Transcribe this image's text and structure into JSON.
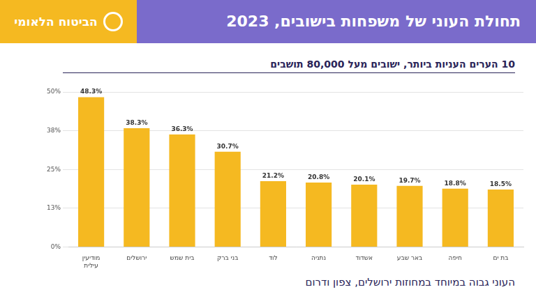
{
  "logo": "הביטוח הלאומי",
  "footer": "העוני גבוה במיוחד במחוזות ירושלים, צפון ודרום",
  "chart_data": {
    "type": "bar",
    "title": "תחולת העוני של משפחות בישובים, 2023",
    "subtitle": "10 הערים העניות ביותר, ישובים מעל 80,000 תושבים",
    "categories": [
      "מודיעין עילית",
      "ירושלים",
      "בית שמש",
      "בני ברק",
      "לוד",
      "נתניה",
      "אשדוד",
      "באר שבע",
      "חיפה",
      "בת ים"
    ],
    "values": [
      48.3,
      38.3,
      36.3,
      30.7,
      21.2,
      20.8,
      20.1,
      19.7,
      18.8,
      18.5
    ],
    "value_labels": [
      "48.3%",
      "38.3%",
      "36.3%",
      "30.7%",
      "21.2%",
      "20.8%",
      "20.1%",
      "19.7%",
      "18.8%",
      "18.5%"
    ],
    "color": "#f5b921",
    "ylim": [
      0,
      50
    ],
    "yticks": [
      {
        "value": 0,
        "label": "0%"
      },
      {
        "value": 12.5,
        "label": "13%"
      },
      {
        "value": 25,
        "label": "25%"
      },
      {
        "value": 37.5,
        "label": "38%"
      },
      {
        "value": 50,
        "label": "50%"
      }
    ],
    "grid": true,
    "data_labels": true
  }
}
